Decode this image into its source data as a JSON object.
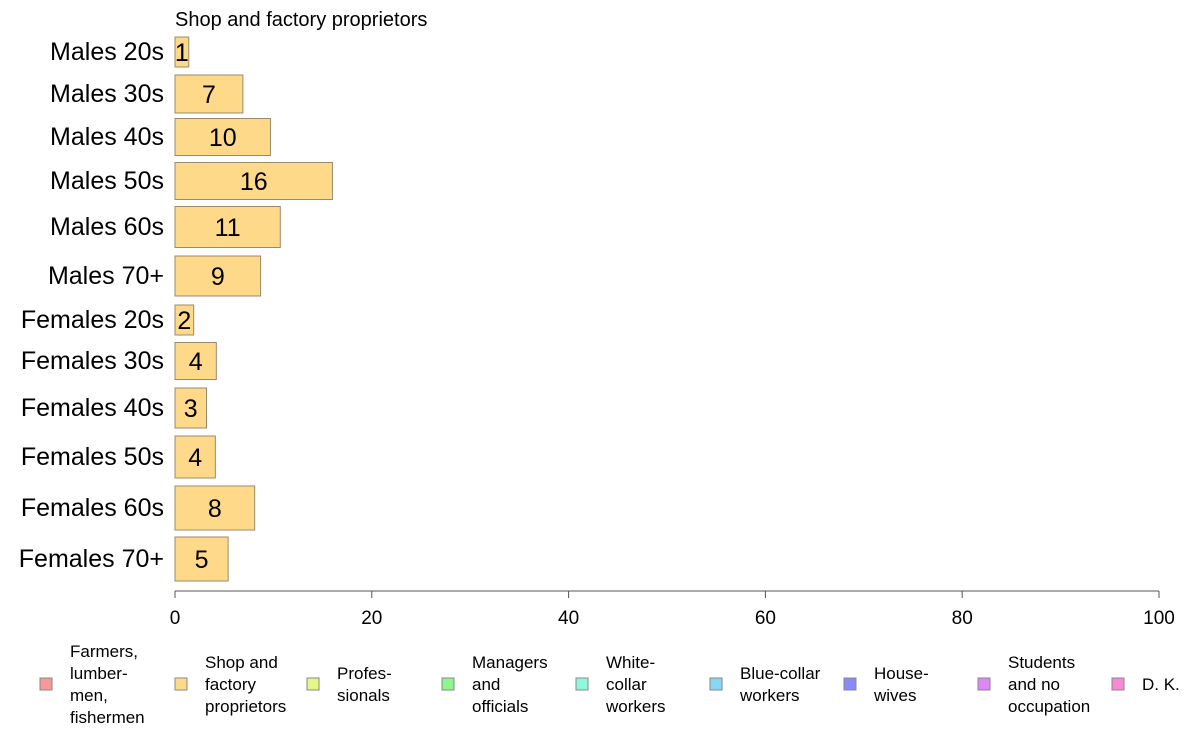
{
  "chart_data": {
    "type": "bar",
    "orientation": "horizontal",
    "title": "Shop and factory proprietors",
    "categories": [
      "Males 20s",
      "Males 30s",
      "Males 40s",
      "Males 50s",
      "Males 60s",
      "Males 70+",
      "Females 20s",
      "Females 30s",
      "Females 40s",
      "Females 50s",
      "Females 60s",
      "Females 70+"
    ],
    "values": [
      1,
      7,
      10,
      16,
      11,
      9,
      2,
      4,
      3,
      4,
      8,
      5
    ],
    "bar_values": [
      1.4,
      6.9,
      9.7,
      16.0,
      10.7,
      8.7,
      1.9,
      4.2,
      3.2,
      4.1,
      8.1,
      5.4
    ],
    "xlim": [
      0,
      100
    ],
    "xticks": [
      "0",
      "20",
      "40",
      "60",
      "80",
      "100"
    ],
    "grid": false,
    "bar_color": "#ffd98a",
    "bar_stroke": "#9a8a6a",
    "legend_position": "bottom",
    "legend": [
      {
        "lines": [
          "Farmers,",
          "lumber-",
          "men,",
          "fishermen"
        ],
        "color": "#f59a96"
      },
      {
        "lines": [
          "Shop and",
          "factory",
          "proprietors"
        ],
        "color": "#ffd98a"
      },
      {
        "lines": [
          "Profes-",
          "sionals"
        ],
        "color": "#e4f983"
      },
      {
        "lines": [
          "Managers",
          "and",
          "officials"
        ],
        "color": "#8ff58f"
      },
      {
        "lines": [
          "White-",
          "collar",
          "workers"
        ],
        "color": "#8ff7dc"
      },
      {
        "lines": [
          "Blue-collar",
          "workers"
        ],
        "color": "#8ad7f5"
      },
      {
        "lines": [
          "House-",
          "wives"
        ],
        "color": "#8a8af7"
      },
      {
        "lines": [
          "Students",
          "and no",
          "occupation"
        ],
        "color": "#dd88f7"
      },
      {
        "lines": [
          "D. K."
        ],
        "color": "#f78ad7"
      }
    ]
  }
}
